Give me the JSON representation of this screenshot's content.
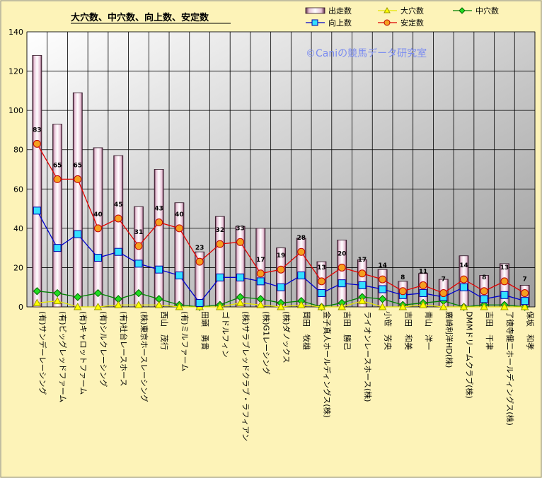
{
  "chart_data": {
    "type": "bar",
    "title": "大穴数、中穴数、向上数、安定数",
    "watermark": "©Caniの競馬データ研究室",
    "ylim": [
      0,
      140
    ],
    "yticks": [
      0,
      20,
      40,
      60,
      80,
      100,
      120,
      140
    ],
    "legend_position": "top-right",
    "grid": true,
    "categories": [
      "(有)サンデーレーシング",
      "(有)ビッグレッドファーム",
      "(有)キャロットファーム",
      "(有)シルクレーシング",
      "(有)社台レースホース",
      "(株)東京ホースレーシング",
      "西山　茂行",
      "(有)ミルファーム",
      "田頭　勇貴",
      "ゴドルフィン",
      "(株)サラブレッドクラブ・ラフィアン",
      "(株)G1レーシング",
      "(株)ダノックス",
      "岡田　牧雄",
      "金子真人ホールディングス(株)",
      "吉田　勝己",
      "ライオンレースホース(株)",
      "小笹　芳央",
      "吉田　和美",
      "青山　洋一",
      "廣崎利洋HD(株)",
      "DMMドリームクラブ(株)",
      "吉田　千津",
      "了徳寺健二ホールディングス(株)",
      "保坂　和孝"
    ],
    "series": [
      {
        "name": "出走数",
        "kind": "bar",
        "color": "#f4dce9",
        "values": [
          128,
          93,
          109,
          81,
          77,
          51,
          70,
          53,
          28,
          46,
          41,
          40,
          30,
          35,
          23,
          34,
          24,
          19,
          13,
          17,
          14,
          26,
          16,
          22,
          11
        ]
      },
      {
        "name": "大穴数",
        "kind": "line",
        "color": "#e6e600",
        "values": [
          2,
          3,
          0,
          0,
          1,
          1,
          1,
          0,
          0,
          0,
          2,
          1,
          0,
          1,
          0,
          0,
          3,
          0,
          0,
          1,
          0,
          0,
          0,
          0,
          0
        ]
      },
      {
        "name": "中穴数",
        "kind": "line",
        "color": "#008000",
        "values": [
          8,
          7,
          5,
          7,
          4,
          7,
          4,
          1,
          0,
          1,
          5,
          4,
          2,
          3,
          0,
          2,
          5,
          4,
          1,
          2,
          3,
          0,
          1,
          1,
          0
        ]
      },
      {
        "name": "向上数",
        "kind": "line",
        "color": "#0000cc",
        "values": [
          49,
          30,
          37,
          25,
          28,
          22,
          19,
          16,
          2,
          15,
          15,
          13,
          10,
          16,
          7,
          12,
          11,
          9,
          6,
          7,
          5,
          10,
          4,
          6,
          3
        ]
      },
      {
        "name": "安定数",
        "kind": "line",
        "color": "#e00000",
        "values": [
          83,
          65,
          65,
          40,
          45,
          31,
          43,
          40,
          23,
          32,
          33,
          17,
          19,
          28,
          13,
          20,
          17,
          14,
          8,
          11,
          7,
          14,
          8,
          13,
          7
        ]
      }
    ],
    "data_labels": [
      "83",
      "65",
      "65",
      "40",
      "45",
      "31",
      "43",
      "40",
      "23",
      "32",
      "33",
      "17",
      "19",
      "28",
      "13",
      "20",
      "17",
      "14",
      "8",
      "11",
      "7",
      "14",
      "8",
      "13",
      "7"
    ]
  }
}
